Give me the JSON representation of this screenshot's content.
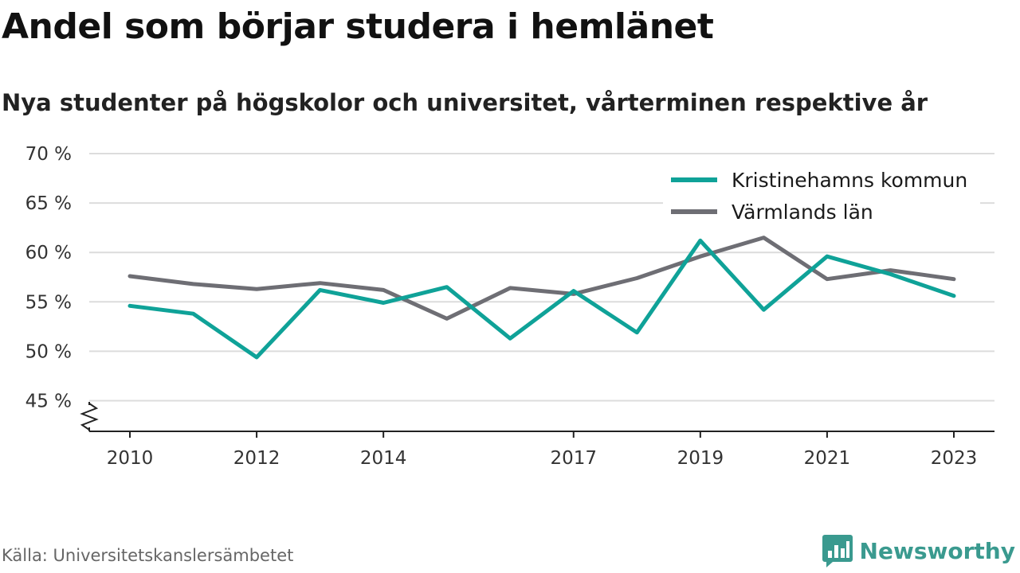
{
  "header": {
    "title": "Andel som börjar studera i hemlänet",
    "subtitle": "Nya studenter på högskolor och universitet, vårterminen respektive år"
  },
  "footer": {
    "source": "Källa: Universitetskanslersämbetet",
    "brand": "Newsworthy",
    "brand_icon": "newsworthy-logo-icon"
  },
  "chart_data": {
    "type": "line",
    "x": [
      2010,
      2011,
      2012,
      2013,
      2014,
      2015,
      2016,
      2017,
      2018,
      2019,
      2020,
      2021,
      2022,
      2023
    ],
    "x_ticks": [
      2010,
      2012,
      2014,
      2017,
      2019,
      2021,
      2023
    ],
    "y_ticks": [
      {
        "value": 45,
        "label": "45 %"
      },
      {
        "value": 50,
        "label": "50 %"
      },
      {
        "value": 55,
        "label": "55 %"
      },
      {
        "value": 60,
        "label": "60 %"
      },
      {
        "value": 65,
        "label": "65 %"
      },
      {
        "value": 70,
        "label": "70 %"
      }
    ],
    "ylim": [
      42,
      70
    ],
    "y_axis_break": true,
    "grid": true,
    "legend_position": "top-right",
    "series": [
      {
        "name": "Kristinehamns kommun",
        "color": "#0fa298",
        "values": [
          54.6,
          53.8,
          49.4,
          56.2,
          54.9,
          56.5,
          51.3,
          56.1,
          51.9,
          61.2,
          54.2,
          59.6,
          57.8,
          55.6
        ]
      },
      {
        "name": "Värmlands län",
        "color": "#6e6e74",
        "values": [
          57.6,
          56.8,
          56.3,
          56.9,
          56.2,
          53.3,
          56.4,
          55.8,
          57.4,
          59.6,
          61.5,
          57.3,
          58.2,
          57.3
        ]
      }
    ]
  }
}
